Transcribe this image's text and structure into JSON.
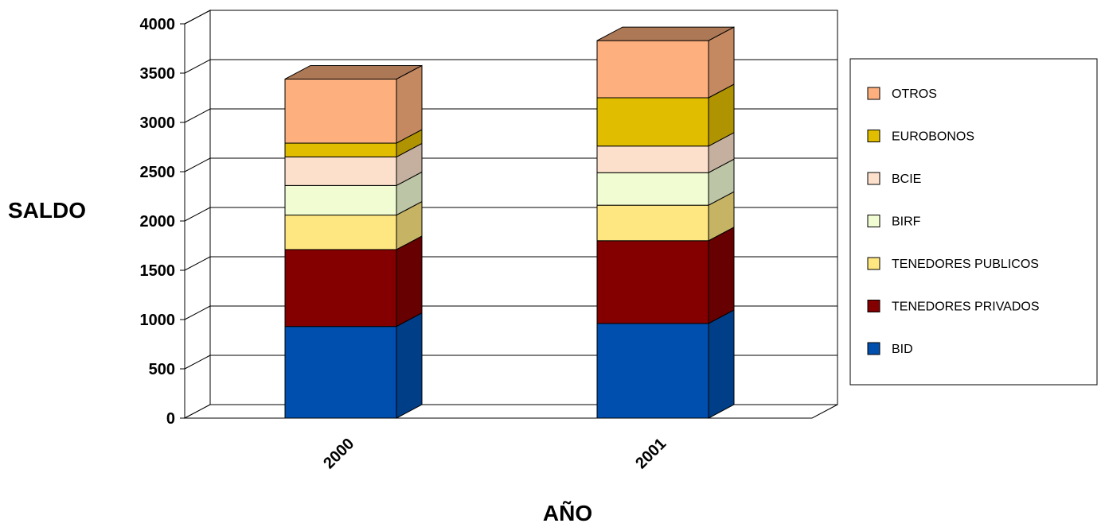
{
  "chart_data": {
    "type": "bar",
    "stacked": true,
    "three_d": true,
    "categories": [
      "2000",
      "2001"
    ],
    "series": [
      {
        "name": "BID",
        "values": [
          930,
          960
        ],
        "color": "#004FAE"
      },
      {
        "name": "TENEDORES PRIVADOS",
        "values": [
          780,
          840
        ],
        "color": "#840000"
      },
      {
        "name": "TENEDORES PUBLICOS",
        "values": [
          350,
          360
        ],
        "color": "#FEE680"
      },
      {
        "name": "BIRF",
        "values": [
          300,
          330
        ],
        "color": "#F1FCD3"
      },
      {
        "name": "BCIE",
        "values": [
          290,
          270
        ],
        "color": "#FDE0CC"
      },
      {
        "name": "EUROBONOS",
        "values": [
          140,
          490
        ],
        "color": "#E1BD00"
      },
      {
        "name": "OTROS",
        "values": [
          650,
          580
        ],
        "color": "#FDB07E"
      }
    ],
    "xlabel": "AÑO",
    "ylabel": "SALDO",
    "ylim": [
      0,
      4000
    ],
    "yticks": [
      "0",
      "500",
      "1000",
      "1500",
      "2000",
      "2500",
      "3000",
      "3500",
      "4000"
    ],
    "grid": true,
    "legend_position": "right"
  }
}
